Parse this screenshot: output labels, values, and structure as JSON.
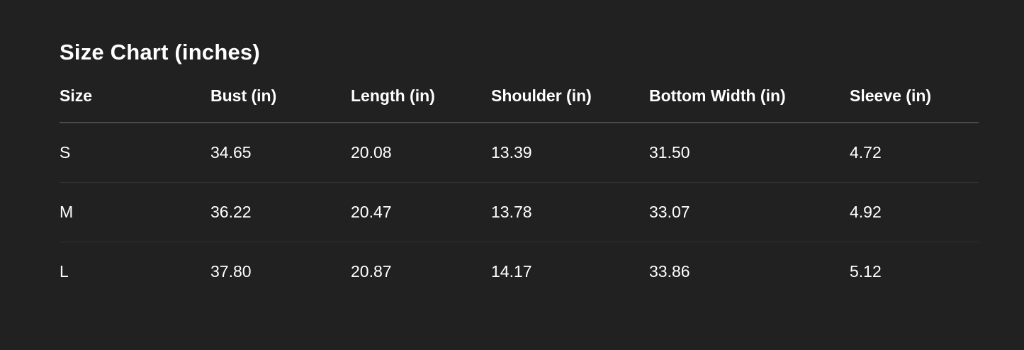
{
  "title": "Size Chart (inches)",
  "table": {
    "headers": [
      "Size",
      "Bust (in)",
      "Length (in)",
      "Shoulder (in)",
      "Bottom Width (in)",
      "Sleeve (in)"
    ],
    "rows": [
      [
        "S",
        "34.65",
        "20.08",
        "13.39",
        "31.50",
        "4.72"
      ],
      [
        "M",
        "36.22",
        "20.47",
        "13.78",
        "33.07",
        "4.92"
      ],
      [
        "L",
        "37.80",
        "20.87",
        "14.17",
        "33.86",
        "5.12"
      ]
    ]
  },
  "colors": {
    "background": "#212121",
    "text": "#ffffff",
    "header_divider": "#4a4a4a",
    "row_divider": "#333333"
  }
}
